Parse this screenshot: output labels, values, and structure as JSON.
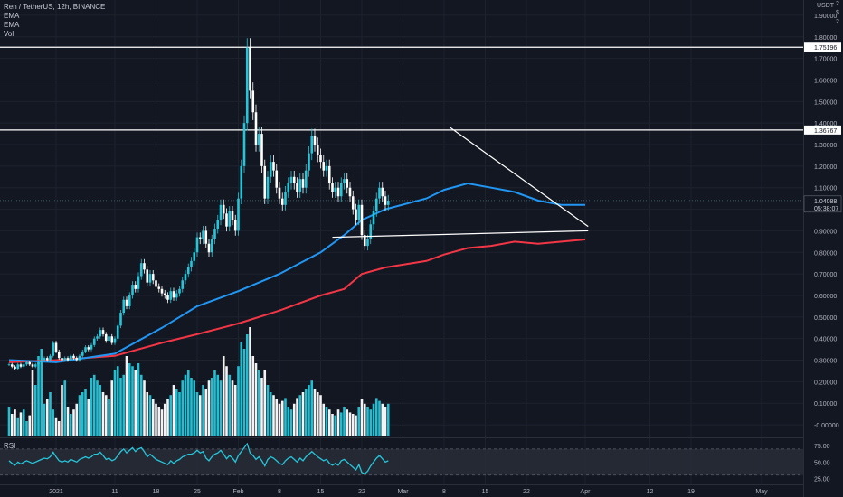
{
  "legend": {
    "symbol_line": "Ren / TetherUS, 12h, BINANCE",
    "ema1": "EMA",
    "ema2": "EMA",
    "vol": "Vol"
  },
  "currency": {
    "line1": "USDT"
  },
  "corner_buttons": {
    "b1": "2",
    "b2": "$",
    "b3": "2"
  },
  "rsi_label": "RSI",
  "colors": {
    "background": "#131722",
    "grid": "#1e222d",
    "up": "#26c6da",
    "down": "#ffffff",
    "ema_fast": "#2196f3",
    "ema_slow": "#f23645",
    "rsi_line": "#26c6da",
    "rsi_band": "#2a2e39",
    "level_line": "#ffffff",
    "trendline": "#ffffff"
  },
  "chart_data": {
    "type": "candlestick",
    "title": "Ren / TetherUS, 12h, BINANCE",
    "y_scale": "linear",
    "ylim": [
      -0.05,
      1.95
    ],
    "y_ticks": [
      "1.90000",
      "1.80000",
      "1.70000",
      "1.60000",
      "1.50000",
      "1.40000",
      "1.30000",
      "1.20000",
      "1.10000",
      "1.00000",
      "0.90000",
      "0.80000",
      "0.70000",
      "0.60000",
      "0.50000",
      "0.40000",
      "0.30000",
      "0.20000",
      "0.10000",
      "-0.00000"
    ],
    "x_ticks": [
      {
        "label": "2021",
        "day": 0
      },
      {
        "label": "11",
        "day": 10
      },
      {
        "label": "18",
        "day": 17
      },
      {
        "label": "25",
        "day": 24
      },
      {
        "label": "Feb",
        "day": 31
      },
      {
        "label": "8",
        "day": 38
      },
      {
        "label": "15",
        "day": 45
      },
      {
        "label": "22",
        "day": 52
      },
      {
        "label": "Mar",
        "day": 59
      },
      {
        "label": "8",
        "day": 66
      },
      {
        "label": "15",
        "day": 73
      },
      {
        "label": "22",
        "day": 80
      },
      {
        "label": "Apr",
        "day": 90
      },
      {
        "label": "12",
        "day": 101
      },
      {
        "label": "19",
        "day": 108
      },
      {
        "label": "May",
        "day": 120
      }
    ],
    "price_labels": [
      {
        "label": "1.75196",
        "value": 1.75196
      },
      {
        "label": "1.36767",
        "value": 1.36767
      }
    ],
    "last_price": {
      "label": "1.04088",
      "value": 1.04088,
      "countdown": "05:38:07"
    },
    "horizontal_levels": [
      1.75196,
      1.36767
    ],
    "close_series": {
      "start_day": -8,
      "step_days": 0.5,
      "values": [
        0.28,
        0.27,
        0.26,
        0.28,
        0.27,
        0.28,
        0.29,
        0.28,
        0.27,
        0.28,
        0.29,
        0.3,
        0.31,
        0.3,
        0.32,
        0.38,
        0.34,
        0.31,
        0.3,
        0.31,
        0.3,
        0.32,
        0.31,
        0.3,
        0.32,
        0.34,
        0.36,
        0.35,
        0.37,
        0.4,
        0.41,
        0.44,
        0.42,
        0.39,
        0.41,
        0.38,
        0.4,
        0.46,
        0.52,
        0.58,
        0.55,
        0.6,
        0.65,
        0.63,
        0.69,
        0.75,
        0.72,
        0.66,
        0.7,
        0.67,
        0.64,
        0.63,
        0.61,
        0.6,
        0.58,
        0.62,
        0.59,
        0.61,
        0.63,
        0.67,
        0.7,
        0.73,
        0.76,
        0.8,
        0.87,
        0.86,
        0.9,
        0.84,
        0.8,
        0.86,
        0.91,
        0.95,
        1.02,
        0.98,
        0.92,
        0.99,
        0.95,
        0.9,
        1.05,
        1.2,
        1.4,
        1.75,
        1.55,
        1.45,
        1.3,
        1.35,
        1.2,
        1.05,
        1.15,
        1.22,
        1.18,
        1.1,
        1.05,
        1.02,
        1.08,
        1.12,
        1.15,
        1.12,
        1.08,
        1.14,
        1.1,
        1.18,
        1.26,
        1.34,
        1.3,
        1.25,
        1.22,
        1.18,
        1.2,
        1.12,
        1.08,
        1.1,
        1.06,
        1.12,
        1.14,
        1.1,
        1.06,
        1.0,
        0.95,
        1.02,
        0.88,
        0.83,
        0.86,
        0.93,
        0.99,
        1.05,
        1.1,
        1.06,
        1.02,
        1.04
      ]
    },
    "ema_fast": {
      "label": "EMA",
      "points": [
        [
          -8,
          0.3
        ],
        [
          0,
          0.29
        ],
        [
          10,
          0.33
        ],
        [
          18,
          0.45
        ],
        [
          24,
          0.55
        ],
        [
          31,
          0.62
        ],
        [
          38,
          0.7
        ],
        [
          45,
          0.8
        ],
        [
          49,
          0.88
        ],
        [
          52,
          0.95
        ],
        [
          56,
          1.0
        ],
        [
          63,
          1.05
        ],
        [
          66,
          1.09
        ],
        [
          70,
          1.12
        ],
        [
          74,
          1.1
        ],
        [
          78,
          1.08
        ],
        [
          82,
          1.04
        ],
        [
          86,
          1.02
        ],
        [
          90,
          1.02
        ]
      ]
    },
    "ema_slow": {
      "label": "EMA",
      "points": [
        [
          -8,
          0.29
        ],
        [
          0,
          0.3
        ],
        [
          10,
          0.32
        ],
        [
          18,
          0.38
        ],
        [
          24,
          0.42
        ],
        [
          31,
          0.47
        ],
        [
          38,
          0.53
        ],
        [
          45,
          0.6
        ],
        [
          49,
          0.63
        ],
        [
          52,
          0.7
        ],
        [
          56,
          0.73
        ],
        [
          63,
          0.76
        ],
        [
          66,
          0.79
        ],
        [
          70,
          0.82
        ],
        [
          74,
          0.83
        ],
        [
          78,
          0.85
        ],
        [
          82,
          0.84
        ],
        [
          86,
          0.85
        ],
        [
          90,
          0.86
        ]
      ]
    },
    "trendlines": [
      {
        "from": [
          67,
          1.38
        ],
        "to": [
          90.5,
          0.92
        ]
      },
      {
        "from": [
          47,
          0.87
        ],
        "to": [
          90.5,
          0.9
        ]
      }
    ],
    "volume": {
      "label": "Vol",
      "values": [
        20,
        15,
        18,
        12,
        16,
        18,
        10,
        14,
        45,
        35,
        55,
        60,
        22,
        25,
        30,
        18,
        12,
        10,
        35,
        38,
        20,
        15,
        18,
        22,
        28,
        30,
        32,
        25,
        40,
        42,
        38,
        35,
        30,
        28,
        25,
        38,
        45,
        48,
        40,
        42,
        55,
        50,
        48,
        45,
        50,
        42,
        38,
        30,
        28,
        25,
        22,
        20,
        18,
        22,
        25,
        28,
        35,
        32,
        30,
        38,
        42,
        45,
        40,
        38,
        30,
        28,
        35,
        32,
        38,
        40,
        45,
        42,
        38,
        55,
        48,
        42,
        38,
        35,
        48,
        65,
        60,
        70,
        75,
        55,
        50,
        45,
        40,
        45,
        35,
        30,
        28,
        25,
        22,
        24,
        26,
        20,
        18,
        22,
        26,
        28,
        30,
        32,
        35,
        38,
        32,
        30,
        28,
        22,
        20,
        18,
        15,
        14,
        18,
        16,
        20,
        18,
        16,
        15,
        14,
        20,
        25,
        22,
        20,
        18,
        22,
        26,
        24,
        22,
        20,
        22
      ]
    },
    "rsi": {
      "label": "RSI",
      "ylim": [
        20,
        85
      ],
      "ticks": [
        "75.00",
        "50.00",
        "25.00"
      ],
      "band": [
        30,
        70
      ],
      "values": [
        52,
        48,
        45,
        50,
        47,
        50,
        52,
        50,
        48,
        50,
        52,
        54,
        56,
        55,
        58,
        65,
        58,
        52,
        50,
        52,
        50,
        54,
        52,
        50,
        54,
        56,
        58,
        56,
        58,
        62,
        62,
        65,
        60,
        54,
        56,
        52,
        54,
        60,
        66,
        70,
        64,
        68,
        72,
        66,
        70,
        72,
        66,
        58,
        62,
        58,
        54,
        52,
        50,
        48,
        46,
        52,
        48,
        52,
        54,
        58,
        60,
        62,
        62,
        64,
        68,
        64,
        66,
        56,
        52,
        58,
        62,
        64,
        68,
        62,
        55,
        60,
        56,
        50,
        60,
        66,
        72,
        78,
        64,
        60,
        54,
        58,
        52,
        44,
        54,
        58,
        56,
        52,
        48,
        46,
        52,
        56,
        58,
        54,
        50,
        56,
        52,
        58,
        62,
        66,
        62,
        58,
        55,
        52,
        54,
        48,
        45,
        48,
        45,
        52,
        54,
        50,
        46,
        42,
        38,
        46,
        34,
        32,
        36,
        44,
        50,
        56,
        60,
        55,
        50,
        52
      ]
    }
  }
}
